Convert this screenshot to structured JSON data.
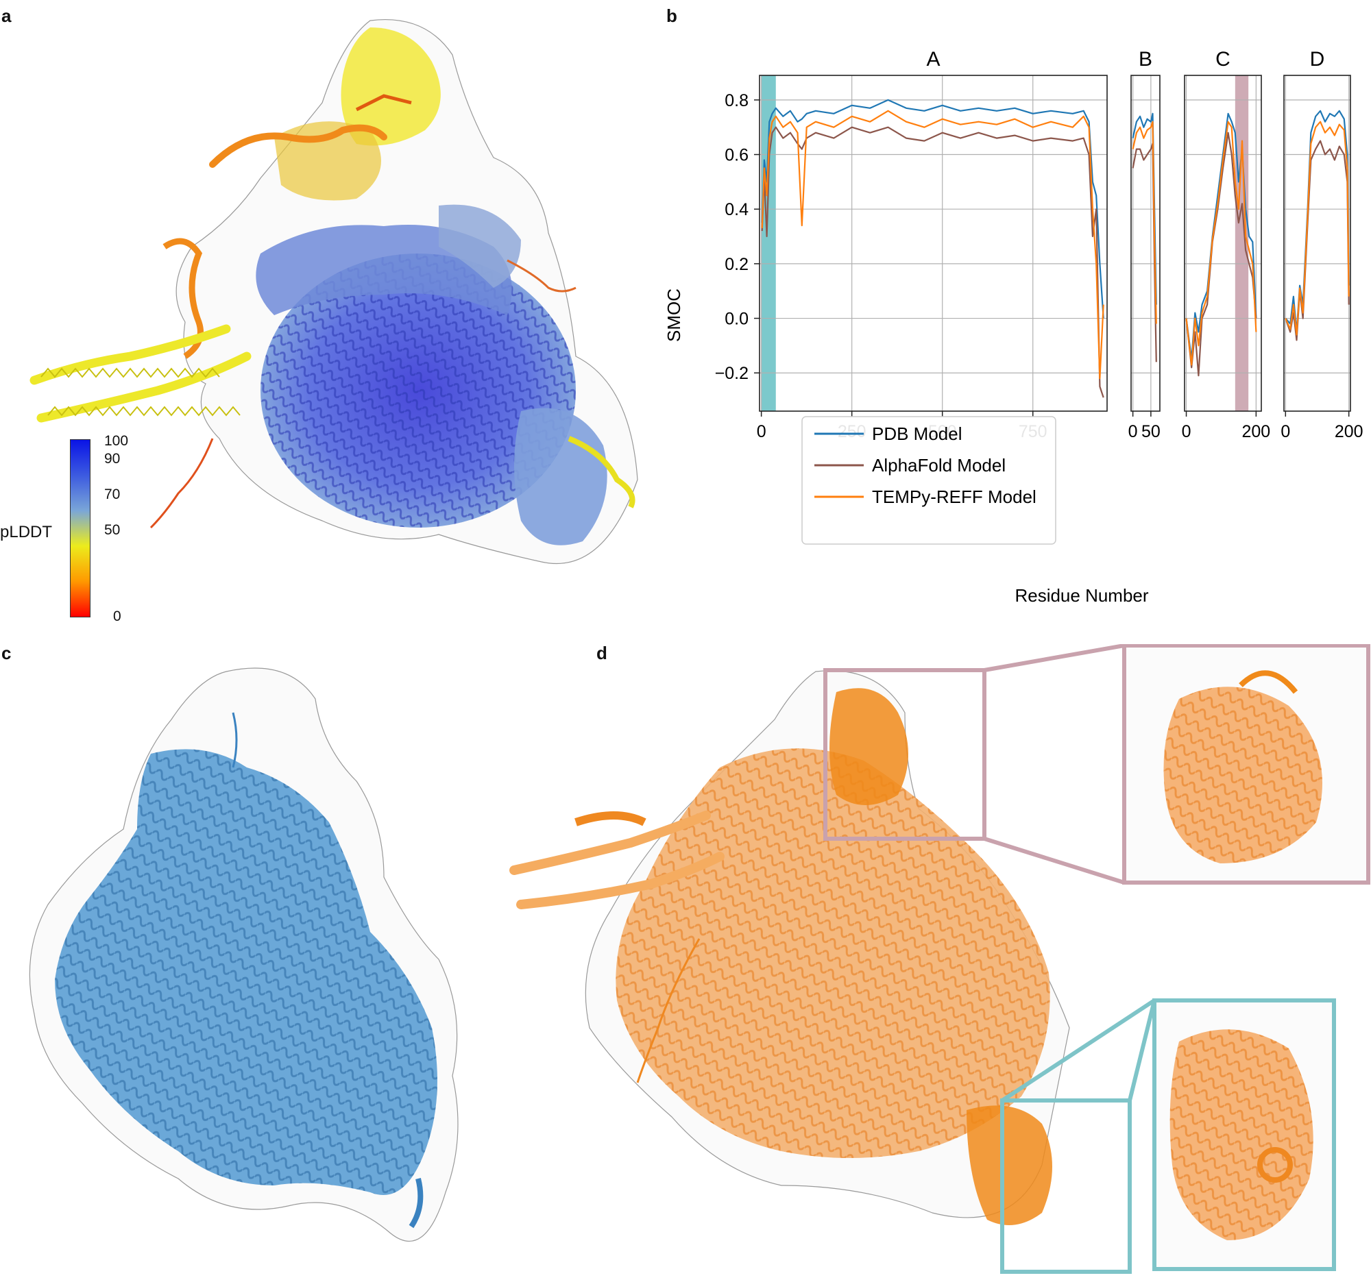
{
  "figure": {
    "panel_labels": [
      "a",
      "b",
      "c",
      "d"
    ]
  },
  "panel_a": {
    "colorbar_label": "pLDDT",
    "colorbar_ticks": [
      "100",
      "90",
      "70",
      "50",
      "0"
    ],
    "colorbar_colors": [
      "#0a14e6",
      "#3c5ae0",
      "#7aa6d8",
      "#ecec1c",
      "#ff9900",
      "#ff0000"
    ]
  },
  "panel_b": {
    "ylabel": "SMOC",
    "xlabel": "Residue Number",
    "legend": [
      "PDB Model",
      "AlphaFold Model",
      "TEMPy-REFF Model"
    ]
  },
  "chart_data": {
    "type": "line",
    "title": "",
    "ylabel": "SMOC",
    "xlabel": "Residue Number",
    "ylim": [
      -0.34,
      0.89
    ],
    "yticks": [
      -0.2,
      0.0,
      0.2,
      0.4,
      0.6,
      0.8
    ],
    "ytick_labels": [
      "−0.2",
      "0.0",
      "0.2",
      "0.4",
      "0.6",
      "0.8"
    ],
    "grid": true,
    "legend_position": "bottom-left of chain A",
    "colors": {
      "PDB Model": "#1f77b4",
      "AlphaFold Model": "#8c564b",
      "TEMPy-REFF Model": "#ff7f0e"
    },
    "subplots": [
      {
        "name": "A",
        "xlim": [
          -5,
          955
        ],
        "xticks": [
          0,
          250,
          500,
          750
        ],
        "highlight": {
          "x0": 0,
          "x1": 40,
          "color": "#6ec3c6"
        },
        "x": [
          2,
          8,
          15,
          22,
          30,
          40,
          60,
          80,
          100,
          112,
          125,
          150,
          200,
          250,
          300,
          350,
          400,
          450,
          500,
          550,
          600,
          650,
          700,
          750,
          800,
          860,
          890,
          905,
          915,
          925,
          935,
          945
        ],
        "series": [
          {
            "name": "PDB Model",
            "values": [
              0.35,
              0.58,
              0.5,
              0.72,
              0.75,
              0.77,
              0.74,
              0.76,
              0.72,
              0.73,
              0.75,
              0.76,
              0.75,
              0.78,
              0.77,
              0.8,
              0.77,
              0.76,
              0.78,
              0.76,
              0.77,
              0.76,
              0.77,
              0.75,
              0.76,
              0.75,
              0.76,
              0.72,
              0.5,
              0.45,
              0.2,
              0.0
            ]
          },
          {
            "name": "AlphaFold Model",
            "values": [
              0.32,
              0.52,
              0.3,
              0.6,
              0.68,
              0.7,
              0.66,
              0.68,
              0.64,
              0.62,
              0.66,
              0.68,
              0.66,
              0.7,
              0.68,
              0.7,
              0.66,
              0.65,
              0.68,
              0.66,
              0.68,
              0.66,
              0.67,
              0.65,
              0.66,
              0.65,
              0.66,
              0.6,
              0.3,
              0.4,
              -0.25,
              -0.29
            ]
          },
          {
            "name": "TEMPy-REFF Model",
            "values": [
              0.33,
              0.55,
              0.45,
              0.66,
              0.72,
              0.74,
              0.7,
              0.72,
              0.68,
              0.34,
              0.7,
              0.72,
              0.7,
              0.74,
              0.72,
              0.76,
              0.72,
              0.7,
              0.73,
              0.71,
              0.72,
              0.71,
              0.73,
              0.7,
              0.72,
              0.7,
              0.74,
              0.7,
              0.4,
              0.2,
              -0.22,
              0.05
            ]
          }
        ]
      },
      {
        "name": "B",
        "xlim": [
          -5,
          75
        ],
        "xticks": [
          0,
          50
        ],
        "x": [
          0,
          10,
          20,
          30,
          40,
          50,
          55,
          60,
          65
        ],
        "series": [
          {
            "name": "PDB Model",
            "values": [
              0.66,
              0.72,
              0.74,
              0.7,
              0.73,
              0.72,
              0.75,
              0.4,
              0.05
            ]
          },
          {
            "name": "AlphaFold Model",
            "values": [
              0.55,
              0.62,
              0.62,
              0.58,
              0.6,
              0.62,
              0.64,
              0.2,
              -0.16
            ]
          },
          {
            "name": "TEMPy-REFF Model",
            "values": [
              0.62,
              0.68,
              0.7,
              0.66,
              0.69,
              0.7,
              0.72,
              0.3,
              -0.02
            ]
          }
        ]
      },
      {
        "name": "C",
        "xlim": [
          -5,
          215
        ],
        "xticks": [
          0,
          200
        ],
        "highlight": {
          "x0": 140,
          "x1": 178,
          "color": "#c9a2ad"
        },
        "x": [
          0,
          15,
          25,
          35,
          45,
          60,
          75,
          90,
          105,
          120,
          130,
          140,
          150,
          160,
          170,
          180,
          190,
          200
        ],
        "series": [
          {
            "name": "PDB Model",
            "values": [
              0.0,
              -0.15,
              0.02,
              -0.05,
              0.05,
              0.1,
              0.3,
              0.45,
              0.6,
              0.75,
              0.72,
              0.68,
              0.5,
              0.62,
              0.4,
              0.3,
              0.28,
              0.0
            ]
          },
          {
            "name": "AlphaFold Model",
            "values": [
              0.0,
              -0.18,
              -0.05,
              -0.21,
              0.0,
              0.05,
              0.28,
              0.4,
              0.55,
              0.68,
              0.6,
              0.45,
              0.35,
              0.42,
              0.25,
              0.2,
              0.15,
              0.0
            ]
          },
          {
            "name": "TEMPy-REFF Model",
            "values": [
              0.0,
              -0.17,
              0.0,
              -0.1,
              0.02,
              0.08,
              0.29,
              0.42,
              0.58,
              0.72,
              0.7,
              0.5,
              0.4,
              0.65,
              0.3,
              0.25,
              0.2,
              -0.05
            ]
          }
        ]
      },
      {
        "name": "D",
        "xlim": [
          -5,
          205
        ],
        "xticks": [
          0,
          200
        ],
        "x": [
          0,
          15,
          25,
          35,
          45,
          55,
          70,
          80,
          95,
          110,
          125,
          140,
          155,
          170,
          185,
          195,
          200
        ],
        "series": [
          {
            "name": "PDB Model",
            "values": [
              0.0,
              -0.02,
              0.08,
              -0.05,
              0.12,
              0.05,
              0.4,
              0.68,
              0.74,
              0.76,
              0.72,
              0.75,
              0.74,
              0.76,
              0.73,
              0.6,
              0.12
            ]
          },
          {
            "name": "AlphaFold Model",
            "values": [
              0.0,
              -0.05,
              0.02,
              -0.08,
              0.1,
              0.0,
              0.35,
              0.58,
              0.62,
              0.65,
              0.6,
              0.62,
              0.58,
              0.63,
              0.6,
              0.5,
              0.05
            ]
          },
          {
            "name": "TEMPy-REFF Model",
            "values": [
              0.0,
              -0.04,
              0.05,
              -0.06,
              0.11,
              0.02,
              0.38,
              0.64,
              0.7,
              0.72,
              0.68,
              0.7,
              0.67,
              0.71,
              0.69,
              0.55,
              0.08
            ]
          }
        ]
      }
    ]
  }
}
